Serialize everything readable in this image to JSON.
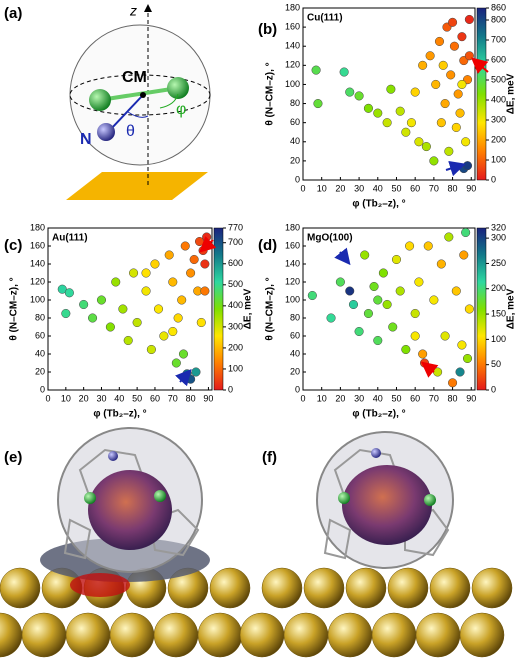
{
  "figure": {
    "panel_a": {
      "label": "(a)",
      "axis": "z",
      "center": "CM",
      "atom": "N",
      "polar_angle": "θ",
      "azimuth": "φ"
    },
    "panel_e": {
      "label": "(e)"
    },
    "panel_f": {
      "label": "(f)"
    }
  },
  "chart_data": [
    {
      "type": "scatter",
      "panel_label": "(b)",
      "title": "Cu(111)",
      "x_label": "φ (Tb₂–z), °",
      "y_label": "θ (N–CM–z), °",
      "x": [
        7,
        8,
        22,
        25,
        30,
        35,
        40,
        45,
        47,
        52,
        55,
        58,
        60,
        62,
        64,
        66,
        68,
        70,
        71,
        73,
        74,
        76,
        77,
        78,
        79,
        80,
        81,
        82,
        83,
        84,
        85,
        86,
        86,
        87,
        88,
        88,
        89,
        89,
        85,
        75
      ],
      "y": [
        115,
        80,
        113,
        92,
        88,
        75,
        70,
        60,
        95,
        72,
        50,
        60,
        92,
        40,
        120,
        35,
        130,
        20,
        100,
        145,
        60,
        80,
        160,
        30,
        110,
        165,
        140,
        55,
        90,
        70,
        150,
        125,
        12,
        40,
        15,
        105,
        168,
        130,
        100,
        120
      ],
      "c": [
        500,
        480,
        560,
        520,
        470,
        430,
        400,
        350,
        420,
        360,
        340,
        300,
        260,
        330,
        210,
        380,
        180,
        410,
        220,
        150,
        240,
        200,
        90,
        360,
        170,
        60,
        120,
        260,
        180,
        230,
        40,
        110,
        800,
        300,
        820,
        150,
        20,
        80,
        300,
        250
      ],
      "xlim": [
        0,
        92
      ],
      "ylim": [
        0,
        180
      ],
      "xticks": [
        0,
        10,
        20,
        30,
        40,
        50,
        60,
        70,
        80,
        90
      ],
      "yticks": [
        0,
        20,
        40,
        60,
        80,
        100,
        120,
        140,
        160,
        180
      ],
      "colorbar": {
        "label": "ΔE, meV",
        "lim": [
          0,
          860
        ],
        "ticks": [
          0,
          100,
          200,
          300,
          400,
          500,
          600,
          700,
          800,
          860
        ]
      },
      "colormap": [
        "#e41a1c",
        "#ff7f00",
        "#ffe600",
        "#7fe000",
        "#2ed8a0",
        "#127a8a",
        "#1a237e"
      ]
    },
    {
      "type": "scatter",
      "panel_label": "(c)",
      "title": "Au(111)",
      "x_label": "φ (Tb₂–z), °",
      "y_label": "θ (N–CM–z), °",
      "x": [
        8,
        10,
        12,
        20,
        25,
        30,
        35,
        38,
        42,
        45,
        48,
        50,
        55,
        58,
        60,
        62,
        65,
        68,
        70,
        72,
        73,
        75,
        76,
        77,
        78,
        80,
        80,
        82,
        83,
        84,
        85,
        86,
        87,
        88,
        89,
        88,
        70,
        55
      ],
      "y": [
        112,
        85,
        108,
        95,
        80,
        100,
        70,
        120,
        90,
        55,
        130,
        75,
        110,
        45,
        140,
        90,
        60,
        150,
        120,
        30,
        80,
        100,
        40,
        160,
        18,
        130,
        12,
        145,
        20,
        110,
        165,
        75,
        155,
        140,
        170,
        110,
        65,
        130
      ],
      "c": [
        520,
        500,
        510,
        480,
        440,
        420,
        380,
        360,
        350,
        330,
        300,
        320,
        270,
        310,
        230,
        260,
        280,
        180,
        200,
        420,
        240,
        200,
        420,
        120,
        650,
        150,
        700,
        100,
        600,
        180,
        60,
        250,
        40,
        30,
        20,
        120,
        260,
        250
      ],
      "xlim": [
        0,
        92
      ],
      "ylim": [
        0,
        180
      ],
      "xticks": [
        0,
        10,
        20,
        30,
        40,
        50,
        60,
        70,
        80,
        90
      ],
      "yticks": [
        0,
        20,
        40,
        60,
        80,
        100,
        120,
        140,
        160,
        180
      ],
      "colorbar": {
        "label": "ΔE, meV",
        "lim": [
          0,
          770
        ],
        "ticks": [
          0,
          100,
          200,
          300,
          400,
          500,
          600,
          700,
          770
        ]
      },
      "colormap": [
        "#e41a1c",
        "#ff7f00",
        "#ffe600",
        "#7fe000",
        "#2ed8a0",
        "#127a8a",
        "#1a237e"
      ]
    },
    {
      "type": "scatter",
      "panel_label": "(d)",
      "title": "MgO(100)",
      "x_label": "φ (Tb₂–z), °",
      "y_label": "θ (N–CM–z), °",
      "x": [
        5,
        15,
        20,
        25,
        27,
        30,
        33,
        35,
        38,
        40,
        43,
        45,
        48,
        50,
        52,
        55,
        57,
        60,
        62,
        64,
        65,
        67,
        70,
        72,
        74,
        76,
        78,
        80,
        82,
        84,
        85,
        86,
        87,
        88,
        89,
        60,
        40
      ],
      "y": [
        105,
        80,
        120,
        110,
        95,
        65,
        150,
        85,
        115,
        55,
        130,
        95,
        70,
        145,
        110,
        45,
        160,
        85,
        120,
        40,
        30,
        160,
        100,
        20,
        140,
        60,
        170,
        8,
        110,
        20,
        50,
        150,
        175,
        35,
        90,
        60,
        100
      ],
      "c": [
        200,
        210,
        190,
        310,
        220,
        200,
        150,
        180,
        170,
        190,
        160,
        150,
        170,
        120,
        140,
        160,
        100,
        130,
        110,
        70,
        20,
        90,
        110,
        130,
        80,
        120,
        140,
        50,
        90,
        260,
        110,
        70,
        200,
        150,
        100,
        110,
        180
      ],
      "xlim": [
        0,
        92
      ],
      "ylim": [
        0,
        180
      ],
      "xticks": [
        0,
        10,
        20,
        30,
        40,
        50,
        60,
        70,
        80,
        90
      ],
      "yticks": [
        0,
        20,
        40,
        60,
        80,
        100,
        120,
        140,
        160,
        180
      ],
      "colorbar": {
        "label": "ΔE, meV",
        "lim": [
          0,
          320
        ],
        "ticks": [
          0,
          50,
          100,
          150,
          200,
          250,
          300,
          320
        ]
      },
      "colormap": [
        "#e41a1c",
        "#ff7f00",
        "#ffe600",
        "#7fe000",
        "#2ed8a0",
        "#127a8a",
        "#1a237e"
      ]
    }
  ]
}
